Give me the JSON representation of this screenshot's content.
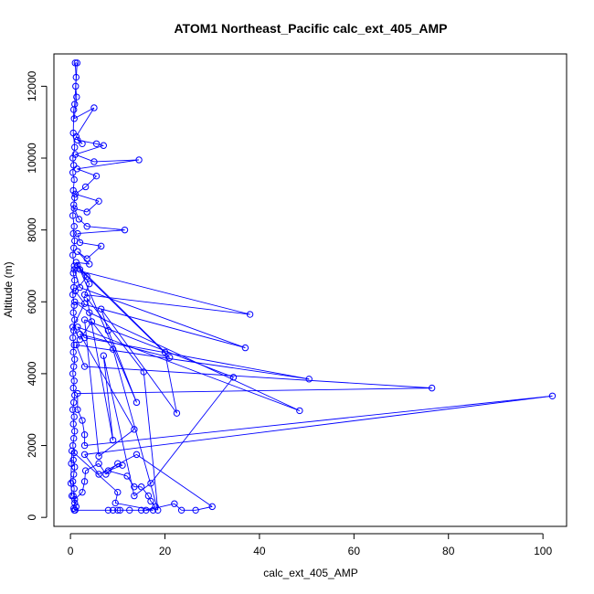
{
  "chart_data": {
    "type": "scatter",
    "title": "ATOM1 Northeast_Pacific calc_ext_405_AMP",
    "xlabel": "calc_ext_405_AMP",
    "ylabel": "Altitude (m)",
    "xlim": [
      -3.5,
      105
    ],
    "ylim": [
      -250,
      12900
    ],
    "x_ticks": [
      0,
      20,
      40,
      60,
      80,
      100
    ],
    "y_ticks": [
      0,
      2000,
      4000,
      6000,
      8000,
      10000,
      12000
    ],
    "x_tick_labels": [
      "0",
      "20",
      "40",
      "60",
      "80",
      "100"
    ],
    "y_tick_labels": [
      "0",
      "2000",
      "4000",
      "6000",
      "8000",
      "10000",
      "12000"
    ],
    "grid": false,
    "series_color": "#0000ff",
    "marker": "open-circle",
    "connected": true,
    "points": [
      [
        0.8,
        200
      ],
      [
        1.2,
        300
      ],
      [
        0.9,
        500
      ],
      [
        2.5,
        700
      ],
      [
        3.0,
        1000
      ],
      [
        3.2,
        1300
      ],
      [
        6.0,
        1500
      ],
      [
        7.5,
        1200
      ],
      [
        10.0,
        1500
      ],
      [
        11.0,
        1450
      ],
      [
        8.0,
        1300
      ],
      [
        12.0,
        1150
      ],
      [
        13.5,
        850
      ],
      [
        15.0,
        850
      ],
      [
        16.5,
        600
      ],
      [
        17.0,
        450
      ],
      [
        18.0,
        300
      ],
      [
        16.0,
        200
      ],
      [
        22.0,
        380
      ],
      [
        23.5,
        200
      ],
      [
        26.5,
        200
      ],
      [
        30.0,
        300
      ],
      [
        14.0,
        1750
      ],
      [
        6.0,
        1200
      ],
      [
        3.0,
        1750
      ],
      [
        102.0,
        3380
      ],
      [
        3.0,
        2000
      ],
      [
        3.0,
        2300
      ],
      [
        2.5,
        2700
      ],
      [
        1.5,
        3000
      ],
      [
        1.5,
        3450
      ],
      [
        76.5,
        3600
      ],
      [
        3.0,
        4200
      ],
      [
        1.2,
        4800
      ],
      [
        50.5,
        3850
      ],
      [
        3.0,
        5000
      ],
      [
        1.5,
        5300
      ],
      [
        48.5,
        2970
      ],
      [
        4.0,
        5700
      ],
      [
        0.9,
        6000
      ],
      [
        37.0,
        4720
      ],
      [
        2.0,
        6400
      ],
      [
        0.8,
        6900
      ],
      [
        38.0,
        5650
      ],
      [
        3.0,
        6200
      ],
      [
        4.0,
        6500
      ],
      [
        1.5,
        7000
      ],
      [
        20.0,
        4600
      ],
      [
        22.5,
        2900
      ],
      [
        6.5,
        5800
      ],
      [
        8.0,
        5200
      ],
      [
        14.0,
        3200
      ],
      [
        2.0,
        6900
      ],
      [
        21.0,
        4450
      ],
      [
        2.0,
        5100
      ],
      [
        13.5,
        2450
      ],
      [
        6.0,
        1700
      ],
      [
        3.0,
        5500
      ],
      [
        34.5,
        3900
      ],
      [
        17.0,
        950
      ],
      [
        13.5,
        600
      ],
      [
        7.0,
        4500
      ],
      [
        9.0,
        2150
      ],
      [
        3.5,
        6100
      ],
      [
        15.5,
        4050
      ],
      [
        18.5,
        200
      ],
      [
        9.0,
        4680
      ],
      [
        4.5,
        5450
      ],
      [
        2.0,
        4950
      ],
      [
        0.5,
        5300
      ],
      [
        3.0,
        5950
      ],
      [
        1.0,
        6300
      ],
      [
        3.5,
        6700
      ],
      [
        1.2,
        7100
      ],
      [
        4.0,
        7050
      ],
      [
        1.5,
        7400
      ],
      [
        3.5,
        7200
      ],
      [
        6.5,
        7550
      ],
      [
        2.0,
        7650
      ],
      [
        1.5,
        7900
      ],
      [
        11.5,
        8000
      ],
      [
        3.5,
        8100
      ],
      [
        1.8,
        8300
      ],
      [
        0.8,
        8600
      ],
      [
        3.5,
        8500
      ],
      [
        6.0,
        8800
      ],
      [
        1.0,
        9000
      ],
      [
        3.2,
        9200
      ],
      [
        5.5,
        9500
      ],
      [
        1.4,
        9700
      ],
      [
        14.5,
        9950
      ],
      [
        5.0,
        9900
      ],
      [
        1.0,
        10100
      ],
      [
        7.0,
        10350
      ],
      [
        5.5,
        10400
      ],
      [
        1.5,
        10500
      ],
      [
        2.5,
        10400
      ],
      [
        1.2,
        10600
      ],
      [
        5.0,
        11400
      ],
      [
        0.8,
        11100
      ],
      [
        1.3,
        11700
      ],
      [
        1.1,
        12000
      ],
      [
        1.2,
        12250
      ],
      [
        1.0,
        12650
      ],
      [
        1.4,
        12650
      ],
      [
        0.9,
        11500
      ],
      [
        0.7,
        11350
      ],
      [
        0.6,
        10700
      ],
      [
        0.9,
        10300
      ],
      [
        0.5,
        10000
      ],
      [
        0.7,
        9800
      ],
      [
        0.5,
        9600
      ],
      [
        0.8,
        9400
      ],
      [
        0.6,
        9100
      ],
      [
        0.9,
        8900
      ],
      [
        0.7,
        8700
      ],
      [
        0.5,
        8400
      ],
      [
        0.8,
        8100
      ],
      [
        0.6,
        7900
      ],
      [
        0.9,
        7700
      ],
      [
        0.7,
        7500
      ],
      [
        0.5,
        7300
      ],
      [
        0.8,
        7000
      ],
      [
        0.6,
        6800
      ],
      [
        0.9,
        6600
      ],
      [
        0.7,
        6400
      ],
      [
        0.5,
        6200
      ],
      [
        0.8,
        5900
      ],
      [
        0.6,
        5700
      ],
      [
        0.9,
        5500
      ],
      [
        0.7,
        5200
      ],
      [
        0.5,
        5000
      ],
      [
        0.8,
        4800
      ],
      [
        0.6,
        4600
      ],
      [
        0.9,
        4400
      ],
      [
        0.7,
        4200
      ],
      [
        0.5,
        4000
      ],
      [
        0.8,
        3800
      ],
      [
        0.6,
        3600
      ],
      [
        0.9,
        3400
      ],
      [
        0.7,
        3200
      ],
      [
        0.5,
        3000
      ],
      [
        0.8,
        2800
      ],
      [
        0.6,
        2600
      ],
      [
        0.9,
        2400
      ],
      [
        0.7,
        2200
      ],
      [
        0.5,
        2000
      ],
      [
        0.8,
        1800
      ],
      [
        0.6,
        1600
      ],
      [
        0.9,
        1400
      ],
      [
        0.7,
        1200
      ],
      [
        0.5,
        1000
      ],
      [
        0.8,
        800
      ],
      [
        0.6,
        600
      ],
      [
        0.9,
        400
      ],
      [
        0.7,
        250
      ],
      [
        1.0,
        200
      ],
      [
        8.0,
        200
      ],
      [
        9.0,
        200
      ],
      [
        10.0,
        200
      ],
      [
        10.5,
        200
      ],
      [
        12.5,
        200
      ],
      [
        15.0,
        200
      ],
      [
        17.5,
        200
      ],
      [
        9.5,
        400
      ],
      [
        10.0,
        700
      ],
      [
        0.3,
        1850
      ],
      [
        0.2,
        1500
      ],
      [
        0.1,
        950
      ],
      [
        0.3,
        600
      ]
    ]
  }
}
